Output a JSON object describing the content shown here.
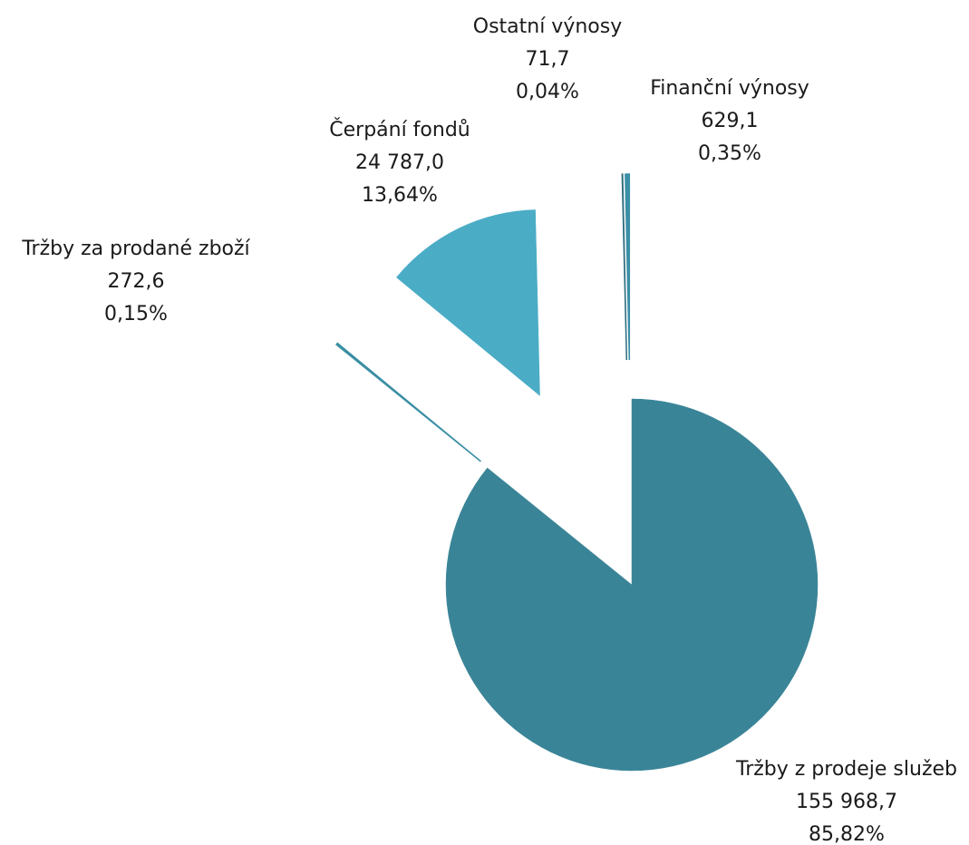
{
  "chart_data": {
    "type": "pie",
    "exploded": true,
    "slices": [
      {
        "label": "Tržby z prodeje služeb",
        "value_text": "155 968,7",
        "percent_text": "85,82%",
        "value": 155968.7,
        "percent": 85.82,
        "color": "#3a8497"
      },
      {
        "label": "Tržby za prodané zboží",
        "value_text": "272,6",
        "percent_text": "0,15%",
        "value": 272.6,
        "percent": 0.15,
        "color": "#3a8ea3"
      },
      {
        "label": "Čerpání fondů",
        "value_text": "24 787,0",
        "percent_text": "13,64%",
        "value": 24787.0,
        "percent": 13.64,
        "color": "#4bacc6"
      },
      {
        "label": "Ostatní výnosy",
        "value_text": "71,7",
        "percent_text": "0,04%",
        "value": 71.7,
        "percent": 0.04,
        "color": "#2f6e80"
      },
      {
        "label": "Finanční výnosy",
        "value_text": "629,1",
        "percent_text": "0,35%",
        "value": 629.1,
        "percent": 0.35,
        "color": "#3b8fa6"
      }
    ]
  }
}
